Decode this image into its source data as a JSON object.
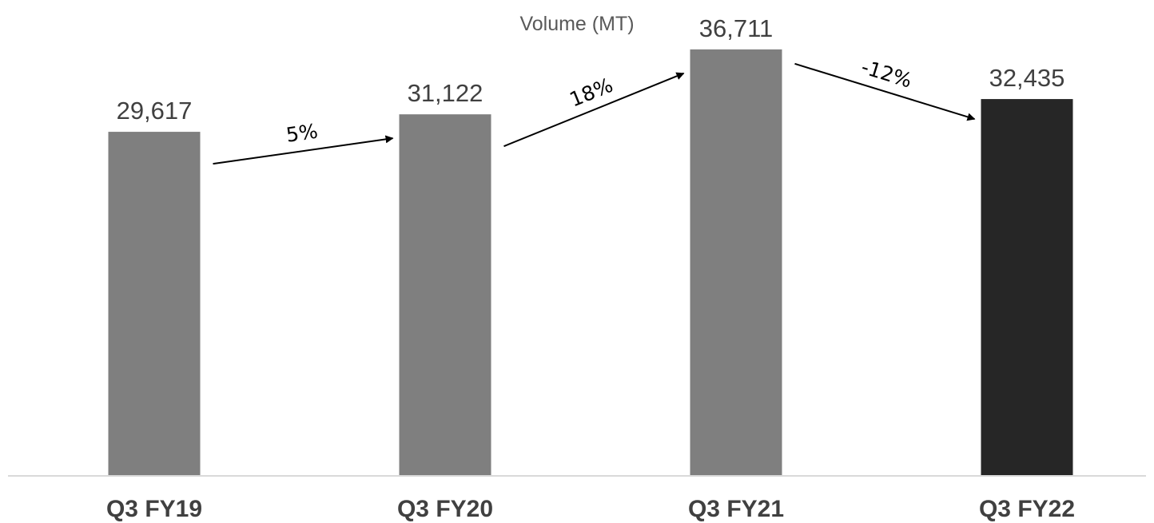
{
  "chart_data": {
    "type": "bar",
    "title": "Volume (MT)",
    "xlabel": "",
    "ylabel": "",
    "categories": [
      "Q3 FY19",
      "Q3 FY20",
      "Q3 FY21",
      "Q3 FY22"
    ],
    "values": [
      29617,
      31122,
      36711,
      32435
    ],
    "value_labels": [
      "29,617",
      "31,122",
      "36,711",
      "32,435"
    ],
    "ylim": [
      0,
      40000
    ],
    "grid": false,
    "legend": "none",
    "bar_colors": [
      "#7f7f7f",
      "#7f7f7f",
      "#7f7f7f",
      "#262626"
    ],
    "annotations": [
      {
        "from": "Q3 FY19",
        "to": "Q3 FY20",
        "text": "5%"
      },
      {
        "from": "Q3 FY20",
        "to": "Q3 FY21",
        "text": "18%"
      },
      {
        "from": "Q3 FY21",
        "to": "Q3 FY22",
        "text": "-12%"
      }
    ]
  },
  "colors": {
    "baseline": "#d9d9d9",
    "arrow": "#000000"
  }
}
